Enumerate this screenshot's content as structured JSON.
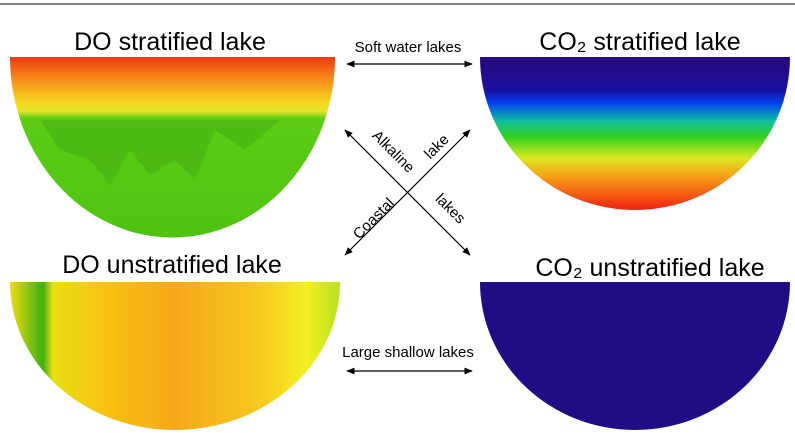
{
  "panels": [
    {
      "title": "DO stratified lake"
    },
    {
      "title": "CO₂ stratified lake"
    },
    {
      "title": "DO unstratified lake"
    },
    {
      "title": "CO₂ unstratified lake"
    }
  ],
  "connections": {
    "top": "Soft water lakes",
    "bottom": "Large shallow lakes",
    "diagonal_down_1": "Alkaline",
    "diagonal_down_2": "lakes",
    "diagonal_up_1": "Coastal",
    "diagonal_up_2": "lake"
  }
}
